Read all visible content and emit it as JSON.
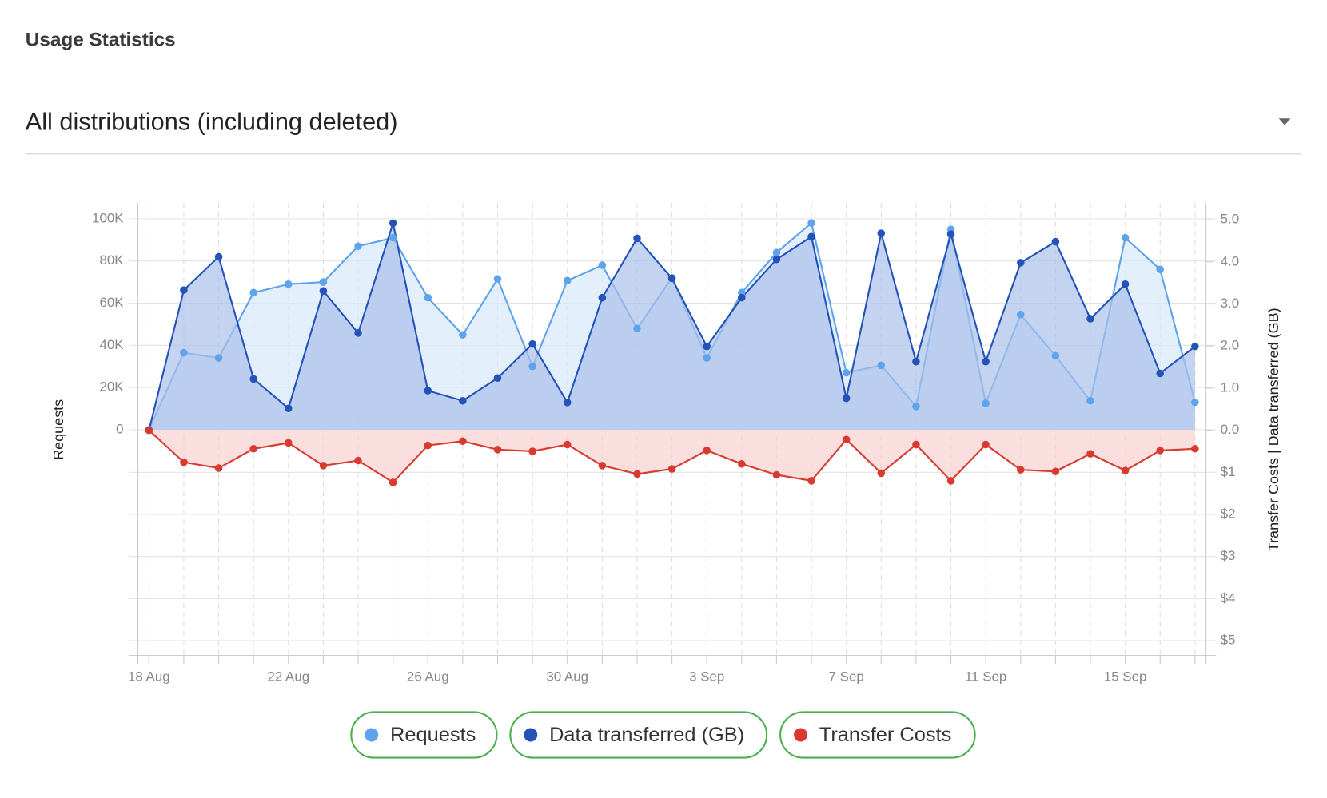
{
  "header": {
    "title": "Usage Statistics",
    "dropdown": "All distributions (including deleted)"
  },
  "chart_data": {
    "type": "line",
    "area": true,
    "grid": true,
    "legend": "bottom",
    "y_label": "Requests",
    "y2_label": "Transfer Costs | Data transferred (GB)",
    "categories": [
      "18 Aug",
      null,
      null,
      null,
      "22 Aug",
      null,
      null,
      null,
      "26 Aug",
      null,
      null,
      null,
      "30 Aug",
      null,
      null,
      null,
      "3 Sep",
      null,
      null,
      null,
      "7 Sep",
      null,
      null,
      null,
      "11 Sep",
      null,
      null,
      null,
      "15 Sep",
      null,
      null
    ],
    "ylim": [
      -107000,
      107500
    ],
    "yticks": [
      0,
      {
        "value": 20000,
        "label": "20K"
      },
      {
        "value": 40000,
        "label": "40K"
      },
      {
        "value": 60000,
        "label": "60K"
      },
      {
        "value": 80000,
        "label": "80K"
      },
      {
        "value": 100000,
        "label": "100K"
      }
    ],
    "y2lim": [
      -5.35,
      5.4
    ],
    "y2ticks": [
      {
        "value": 0,
        "label": "0.0"
      },
      {
        "value": 1,
        "label": "1.0"
      },
      {
        "value": 2,
        "label": "2.0"
      },
      {
        "value": 3,
        "label": "3.0"
      },
      {
        "value": 4,
        "label": "4.0"
      },
      {
        "value": 5,
        "label": "5.0"
      }
    ],
    "y3lim": [
      5.35,
      -5.4
    ],
    "y3ticks": [
      {
        "value": 1,
        "label": "$1"
      },
      {
        "value": 2,
        "label": "$2"
      },
      {
        "value": 3,
        "label": "$3"
      },
      {
        "value": 4,
        "label": "$4"
      },
      {
        "value": 5,
        "label": "$5"
      }
    ],
    "series": [
      {
        "name": "Requests",
        "color": "#5fa3ec",
        "fill": "#d9e8fb",
        "axis": "y",
        "values": [
          0,
          36500,
          34000,
          65000,
          69000,
          70000,
          87000,
          91000,
          62600,
          45000,
          71500,
          30000,
          70700,
          78000,
          48000,
          72000,
          34000,
          65000,
          84000,
          98000,
          27000,
          30500,
          11000,
          95000,
          12500,
          54600,
          35000,
          13700,
          91000,
          76000,
          13000
        ]
      },
      {
        "name": "Data transferred (GB)",
        "color": "#2352b8",
        "fill": "#a9c0ea",
        "axis": "y2",
        "values": [
          0,
          3.33,
          4.12,
          1.22,
          0.52,
          3.31,
          2.31,
          4.92,
          0.94,
          0.7,
          1.24,
          2.05,
          0.66,
          3.15,
          4.56,
          3.61,
          1.99,
          3.15,
          4.06,
          4.6,
          0.76,
          4.68,
          1.63,
          4.66,
          1.63,
          3.98,
          4.48,
          2.65,
          3.47,
          1.35,
          1.99
        ]
      },
      {
        "name": "Transfer Costs",
        "color": "#d83a2f",
        "fill": "#f8d2d0",
        "axis": "y3",
        "values": [
          0,
          0.76,
          0.9,
          0.44,
          0.3,
          0.84,
          0.72,
          1.24,
          0.36,
          0.26,
          0.46,
          0.5,
          0.34,
          0.84,
          1.04,
          0.92,
          0.48,
          0.8,
          1.06,
          1.2,
          0.22,
          1.02,
          0.34,
          1.2,
          0.34,
          0.94,
          0.98,
          0.56,
          0.96,
          0.48,
          0.44
        ]
      }
    ]
  }
}
